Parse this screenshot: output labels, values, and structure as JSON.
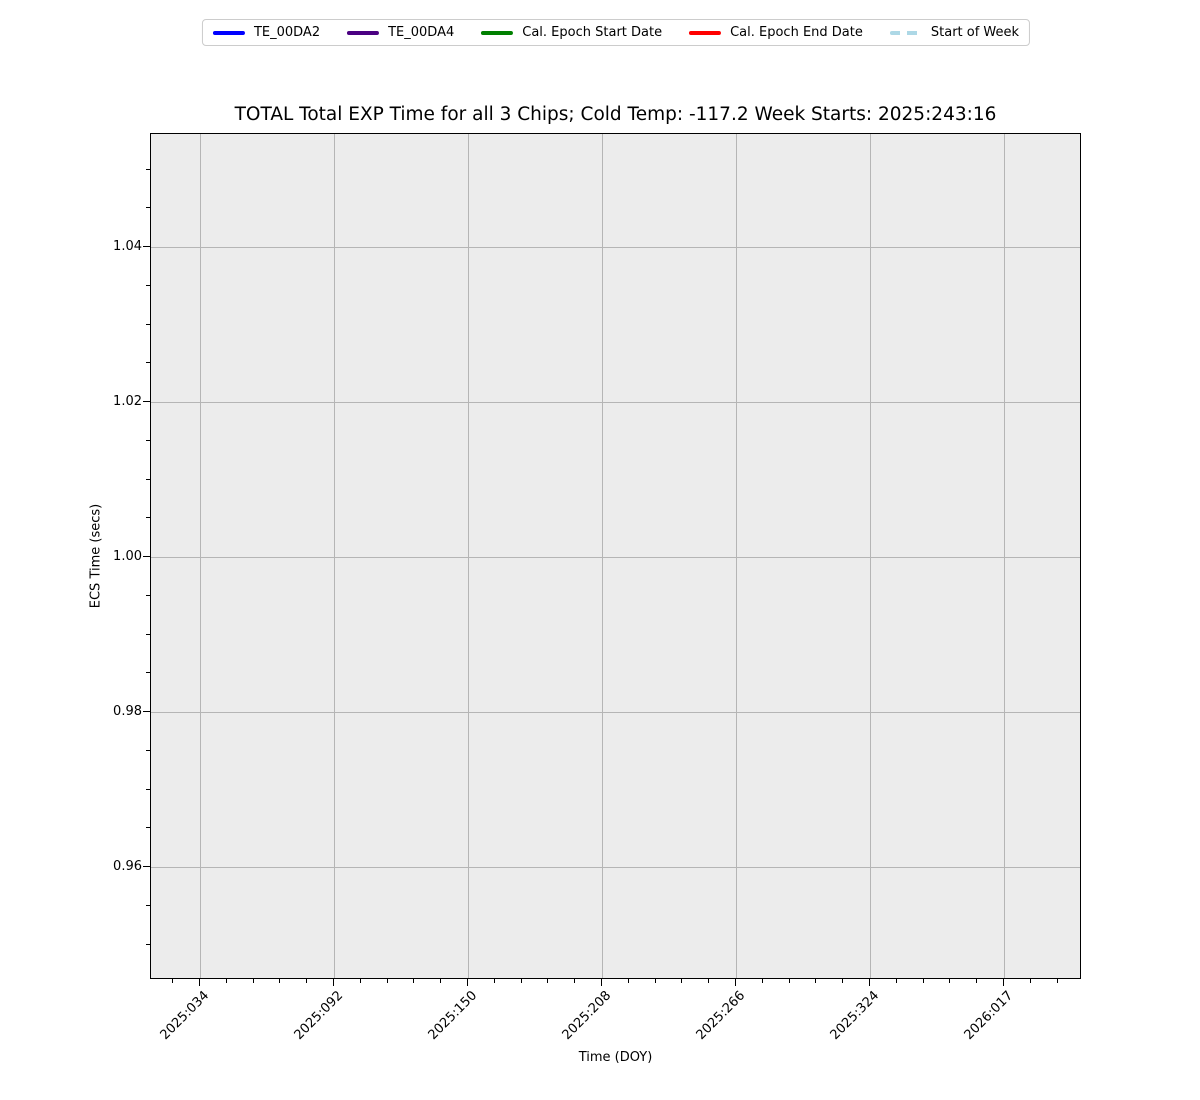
{
  "chart_data": {
    "type": "line",
    "title": "TOTAL Total EXP Time for all 3 Chips; Cold Temp: -117.2 Week Starts: 2025:243:16",
    "xlabel": "Time (DOY)",
    "ylabel": "ECS Time (secs)",
    "x_tick_labels": [
      "2025:034",
      "2025:092",
      "2025:150",
      "2025:208",
      "2025:266",
      "2025:324",
      "2026:017"
    ],
    "y_tick_labels": [
      "1.04",
      "1.02",
      "1.00",
      "0.98",
      "0.96"
    ],
    "y_tick_values": [
      1.04,
      1.02,
      1.0,
      0.98,
      0.96
    ],
    "ylim": [
      0.945,
      1.055
    ],
    "grid": true,
    "legend_position": "top-center",
    "colors": {
      "plot_background": "#ececec",
      "grid": "#b5b5b5",
      "spine": "#000000",
      "figure_background": "#ffffff"
    },
    "legend": [
      {
        "label": "TE_00DA2",
        "color": "#0000ff",
        "style": "solid"
      },
      {
        "label": "TE_00DA4",
        "color": "#4b0082",
        "style": "solid"
      },
      {
        "label": "Cal. Epoch Start Date",
        "color": "#008000",
        "style": "solid"
      },
      {
        "label": "Cal. Epoch End Date",
        "color": "#ff0000",
        "style": "solid"
      },
      {
        "label": "Start of Week",
        "color": "#add8e6",
        "style": "dashed"
      }
    ],
    "series": []
  }
}
